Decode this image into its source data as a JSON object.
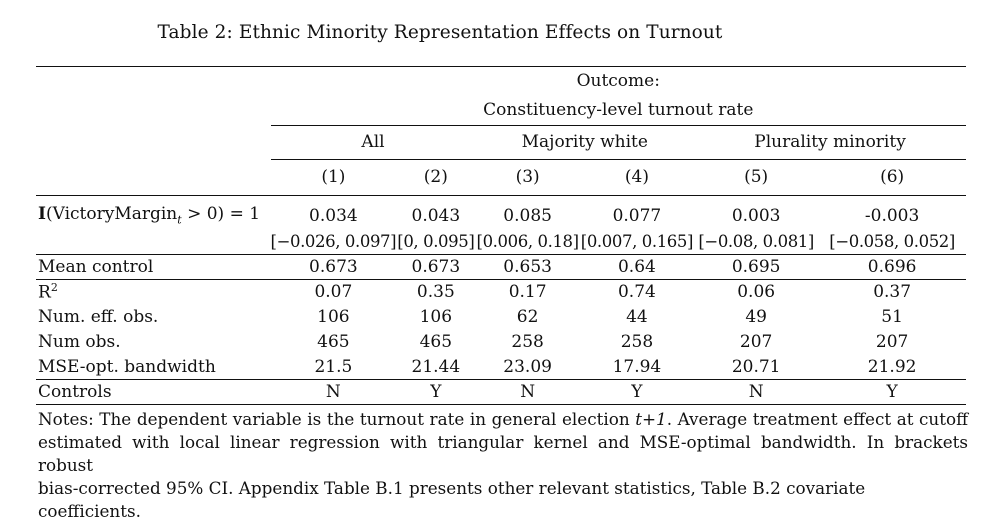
{
  "caption": "Table 2: Ethnic Minority Representation Effects on Turnout",
  "outcome": {
    "line1": "Outcome:",
    "line2": "Constituency-level turnout rate"
  },
  "groups": [
    "All",
    "Majority white",
    "Plurality minority"
  ],
  "columns": [
    "(1)",
    "(2)",
    "(3)",
    "(4)",
    "(5)",
    "(6)"
  ],
  "treatment": {
    "label_prefix": "I",
    "label_open": "(VictoryMargin",
    "label_sub": "t",
    "label_close": " > 0) = 1",
    "estimates": [
      "0.034",
      "0.043",
      "0.085",
      "0.077",
      "0.003",
      "-0.003"
    ],
    "ci": [
      "[−0.026, 0.097]",
      "[0, 0.095]",
      "[0.006, 0.18]",
      "[0.007, 0.165]",
      "[−0.08, 0.081]",
      "[−0.058, 0.052]"
    ]
  },
  "rows": [
    {
      "label": "Mean control",
      "values": [
        "0.673",
        "0.673",
        "0.653",
        "0.64",
        "0.695",
        "0.696"
      ]
    },
    {
      "label": "R",
      "sup": "2",
      "values": [
        "0.07",
        "0.35",
        "0.17",
        "0.74",
        "0.06",
        "0.37"
      ]
    },
    {
      "label": "Num. eff. obs.",
      "values": [
        "106",
        "106",
        "62",
        "44",
        "49",
        "51"
      ]
    },
    {
      "label": "Num obs.",
      "values": [
        "465",
        "465",
        "258",
        "258",
        "207",
        "207"
      ]
    },
    {
      "label": "MSE-opt. bandwidth",
      "values": [
        "21.5",
        "21.44",
        "23.09",
        "17.94",
        "20.71",
        "21.92"
      ]
    },
    {
      "label": "Controls",
      "values": [
        "N",
        "Y",
        "N",
        "Y",
        "N",
        "Y"
      ]
    }
  ],
  "notes": {
    "part1": "Notes: The dependent variable is the turnout rate in general election ",
    "italic": "t+1",
    "part2": ". Average treatment effect at cutoff estimated with local linear regression with triangular kernel and MSE-optimal bandwidth. In brackets robust",
    "line3": "bias-corrected 95% CI. Appendix Table B.1 presents other relevant statistics, Table B.2 covariate coefficients."
  }
}
